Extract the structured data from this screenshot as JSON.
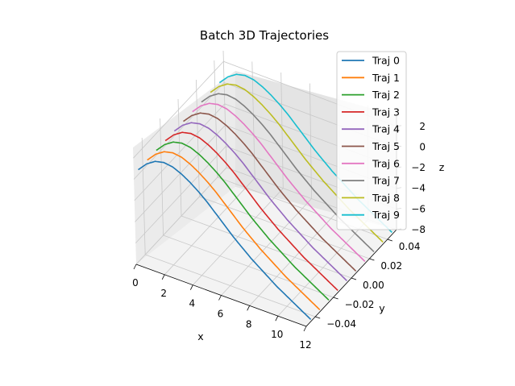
{
  "chart_data": {
    "type": "line",
    "projection": "3d",
    "title": "Batch 3D Trajectories",
    "xlabel": "x",
    "ylabel": "y",
    "zlabel": "z",
    "xlim": [
      0,
      12
    ],
    "ylim": [
      -0.05,
      0.05
    ],
    "zlim": [
      -8,
      3
    ],
    "xticks": [
      0,
      2,
      4,
      6,
      8,
      10,
      12
    ],
    "xtick_labels": [
      "0",
      "2",
      "4",
      "6",
      "8",
      "10",
      "12"
    ],
    "yticks": [
      -0.04,
      -0.02,
      0.0,
      0.02,
      0.04
    ],
    "ytick_labels": [
      "−0.04",
      "−0.02",
      "0.00",
      "0.02",
      "0.04"
    ],
    "zticks": [
      -8,
      -6,
      -4,
      -2,
      0,
      2
    ],
    "ztick_labels": [
      "−8",
      "−6",
      "−4",
      "−2",
      "0",
      "2"
    ],
    "grid": true,
    "legend_position": "top-right",
    "x": [
      0,
      0.6,
      1.2,
      1.8,
      2.4,
      3.0,
      3.6,
      4.2,
      4.8,
      5.4,
      6.0,
      6.6,
      7.2,
      7.8,
      8.4,
      9.0,
      9.6,
      10.2,
      10.8,
      11.4,
      12.0
    ],
    "series": [
      {
        "name": "Traj 0",
        "color": "#1f77b4",
        "y": -0.045,
        "z": [
          0.45,
          1.3,
          1.85,
          2.05,
          1.95,
          1.6,
          1.1,
          0.5,
          -0.2,
          -1.0,
          -1.8,
          -2.6,
          -3.3,
          -4.0,
          -4.6,
          -5.2,
          -5.8,
          -6.3,
          -6.8,
          -7.3,
          -7.8
        ]
      },
      {
        "name": "Traj 1",
        "color": "#ff7f0e",
        "y": -0.035,
        "z": [
          0.45,
          1.3,
          1.85,
          2.05,
          1.95,
          1.6,
          1.1,
          0.5,
          -0.2,
          -1.0,
          -1.8,
          -2.6,
          -3.3,
          -4.0,
          -4.6,
          -5.2,
          -5.8,
          -6.3,
          -6.8,
          -7.3,
          -7.8
        ]
      },
      {
        "name": "Traj 2",
        "color": "#2ca02c",
        "y": -0.025,
        "z": [
          0.45,
          1.3,
          1.85,
          2.05,
          1.95,
          1.6,
          1.1,
          0.5,
          -0.2,
          -1.0,
          -1.8,
          -2.6,
          -3.3,
          -4.0,
          -4.6,
          -5.2,
          -5.8,
          -6.3,
          -6.8,
          -7.3,
          -7.8
        ]
      },
      {
        "name": "Traj 3",
        "color": "#d62728",
        "y": -0.015,
        "z": [
          0.45,
          1.3,
          1.85,
          2.05,
          1.95,
          1.6,
          1.1,
          0.5,
          -0.2,
          -1.0,
          -1.8,
          -2.6,
          -3.3,
          -4.0,
          -4.6,
          -5.2,
          -5.8,
          -6.3,
          -6.8,
          -7.3,
          -7.8
        ]
      },
      {
        "name": "Traj 4",
        "color": "#9467bd",
        "y": -0.005,
        "z": [
          0.45,
          1.3,
          1.85,
          2.05,
          1.95,
          1.6,
          1.1,
          0.5,
          -0.2,
          -1.0,
          -1.8,
          -2.6,
          -3.3,
          -4.0,
          -4.6,
          -5.2,
          -5.8,
          -6.3,
          -6.8,
          -7.3,
          -7.8
        ]
      },
      {
        "name": "Traj 5",
        "color": "#8c564b",
        "y": 0.005,
        "z": [
          0.45,
          1.3,
          1.85,
          2.05,
          1.95,
          1.6,
          1.1,
          0.5,
          -0.2,
          -1.0,
          -1.8,
          -2.6,
          -3.3,
          -4.0,
          -4.6,
          -5.2,
          -5.8,
          -6.3,
          -6.8,
          -7.3,
          -7.8
        ]
      },
      {
        "name": "Traj 6",
        "color": "#e377c2",
        "y": 0.015,
        "z": [
          0.45,
          1.3,
          1.85,
          2.05,
          1.95,
          1.6,
          1.1,
          0.5,
          -0.2,
          -1.0,
          -1.8,
          -2.6,
          -3.3,
          -4.0,
          -4.6,
          -5.2,
          -5.8,
          -6.3,
          -6.8,
          -7.3,
          -7.8
        ]
      },
      {
        "name": "Traj 7",
        "color": "#7f7f7f",
        "y": 0.025,
        "z": [
          0.45,
          1.3,
          1.85,
          2.05,
          1.95,
          1.6,
          1.1,
          0.5,
          -0.2,
          -1.0,
          -1.8,
          -2.6,
          -3.3,
          -4.0,
          -4.6,
          -5.2,
          -5.8,
          -6.3,
          -6.8,
          -7.3,
          -7.8
        ]
      },
      {
        "name": "Traj 8",
        "color": "#bcbd22",
        "y": 0.035,
        "z": [
          0.45,
          1.3,
          1.85,
          2.05,
          1.95,
          1.6,
          1.1,
          0.5,
          -0.2,
          -1.0,
          -1.8,
          -2.6,
          -3.3,
          -4.0,
          -4.6,
          -5.2,
          -5.8,
          -6.3,
          -6.8,
          -7.3,
          -7.8
        ]
      },
      {
        "name": "Traj 9",
        "color": "#17becf",
        "y": 0.045,
        "z": [
          0.45,
          1.3,
          1.85,
          2.05,
          1.95,
          1.6,
          1.1,
          0.5,
          -0.2,
          -1.0,
          -1.8,
          -2.6,
          -3.3,
          -4.0,
          -4.6,
          -5.2,
          -5.8,
          -6.3,
          -6.8,
          -7.3,
          -7.8
        ]
      }
    ]
  }
}
